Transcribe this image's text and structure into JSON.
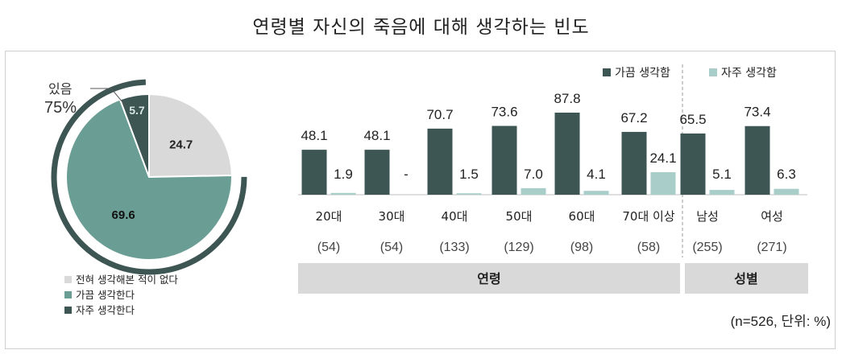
{
  "title": "연령별 자신의 죽음에 대해 생각하는 빈도",
  "unit_note": "(n=526, 단위: %)",
  "pie": {
    "callout_label": "있음",
    "callout_value": "75%",
    "slices": [
      {
        "name": "전혀 생각해본 적이 없다",
        "value": 24.7,
        "label": "24.7",
        "color": "#d9d9d9"
      },
      {
        "name": "가끔 생각한다",
        "value": 69.6,
        "label": "69.6",
        "color": "#6a9e94"
      },
      {
        "name": "자주 생각한다",
        "value": 5.7,
        "label": "5.7",
        "color": "#3d5653"
      }
    ]
  },
  "legend_bar": {
    "sometimes": "가끔 생각함",
    "often": "자주 생각함"
  },
  "chart_data": [
    {
      "type": "pie",
      "categories": [
        "전혀 생각해본 적이 없다",
        "가끔 생각한다",
        "자주 생각한다"
      ],
      "values": [
        24.7,
        69.6,
        5.7
      ],
      "annotation": "있음 75%"
    },
    {
      "type": "bar",
      "categories": [
        "20대",
        "30대",
        "40대",
        "50대",
        "60대",
        "70대 이상",
        "남성",
        "여성"
      ],
      "n_labels": [
        "(54)",
        "(54)",
        "(133)",
        "(129)",
        "(98)",
        "(58)",
        "(255)",
        "(271)"
      ],
      "group_labels": [
        {
          "label": "연령",
          "span": [
            0,
            5
          ]
        },
        {
          "label": "성별",
          "span": [
            6,
            7
          ]
        }
      ],
      "series": [
        {
          "name": "가끔 생각함",
          "color": "#3d5653",
          "values": [
            48.1,
            48.1,
            70.7,
            73.6,
            87.8,
            67.2,
            65.5,
            73.4
          ],
          "labels": [
            "48.1",
            "48.1",
            "70.7",
            "73.6",
            "87.8",
            "67.2",
            "65.5",
            "73.4"
          ]
        },
        {
          "name": "자주 생각함",
          "color": "#a9cdc8",
          "values": [
            1.9,
            0,
            1.5,
            7.0,
            4.1,
            24.1,
            5.1,
            6.3
          ],
          "labels": [
            "1.9",
            "-",
            "1.5",
            "7.0",
            "4.1",
            "24.1",
            "5.1",
            "6.3"
          ]
        }
      ],
      "ylim": [
        0,
        100
      ],
      "grid": false
    }
  ]
}
